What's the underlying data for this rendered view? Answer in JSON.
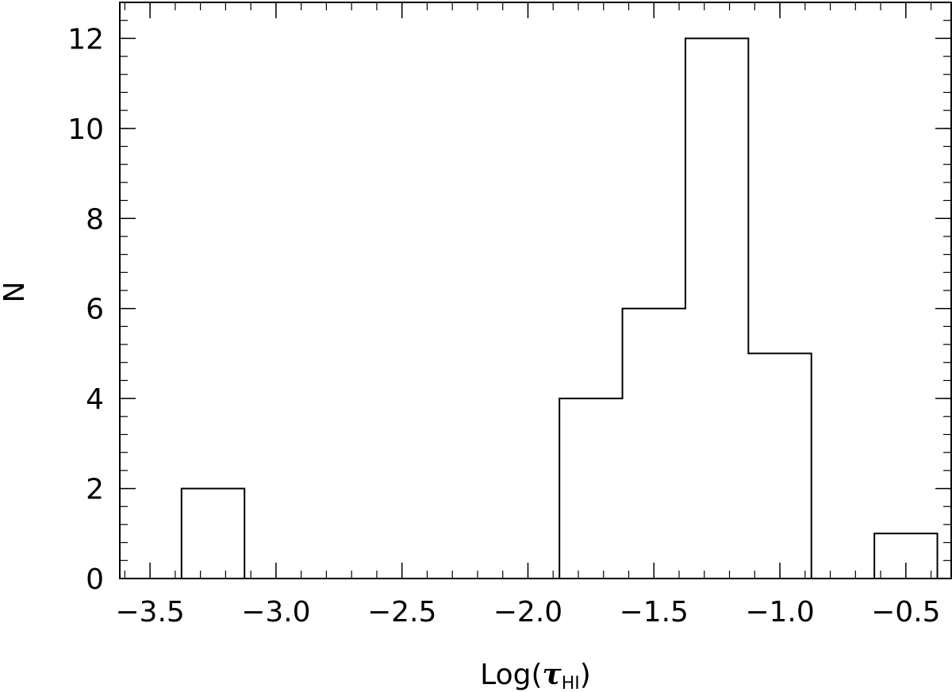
{
  "chart_data": {
    "type": "bar",
    "title": "",
    "xlabel": "Log(τHI)",
    "xlabel_parts": {
      "prefix": "Log(",
      "symbol": "τ",
      "subscript": "HI",
      "suffix": ")"
    },
    "ylabel": "N",
    "xlim": [
      -3.62,
      -0.32
    ],
    "ylim": [
      0,
      12.8
    ],
    "bin_width": 0.25,
    "bins": [
      {
        "x_start": -3.375,
        "x_end": -3.125,
        "count": 2
      },
      {
        "x_start": -3.125,
        "x_end": -2.875,
        "count": 0
      },
      {
        "x_start": -2.875,
        "x_end": -2.625,
        "count": 0
      },
      {
        "x_start": -2.625,
        "x_end": -2.375,
        "count": 0
      },
      {
        "x_start": -2.375,
        "x_end": -2.125,
        "count": 0
      },
      {
        "x_start": -2.125,
        "x_end": -1.875,
        "count": 0
      },
      {
        "x_start": -1.875,
        "x_end": -1.625,
        "count": 4
      },
      {
        "x_start": -1.625,
        "x_end": -1.375,
        "count": 6
      },
      {
        "x_start": -1.375,
        "x_end": -1.125,
        "count": 12
      },
      {
        "x_start": -1.125,
        "x_end": -0.875,
        "count": 5
      },
      {
        "x_start": -0.875,
        "x_end": -0.625,
        "count": 0
      },
      {
        "x_start": -0.625,
        "x_end": -0.375,
        "count": 1
      }
    ],
    "x_major_ticks": [
      -3.5,
      -3.0,
      -2.5,
      -2.0,
      -1.5,
      -1.0,
      -0.5
    ],
    "x_tick_labels": [
      "−3.5",
      "−3.0",
      "−2.5",
      "−2.0",
      "−1.5",
      "−1.0",
      "−0.5"
    ],
    "y_major_ticks": [
      0,
      2,
      4,
      6,
      8,
      10,
      12
    ],
    "y_tick_labels": [
      "0",
      "2",
      "4",
      "6",
      "8",
      "10",
      "12"
    ],
    "x_minor_step": 0.1,
    "y_minor_step": 0.4,
    "grid": false,
    "style": {
      "line_color": "#000000",
      "background": "#ffffff"
    }
  }
}
